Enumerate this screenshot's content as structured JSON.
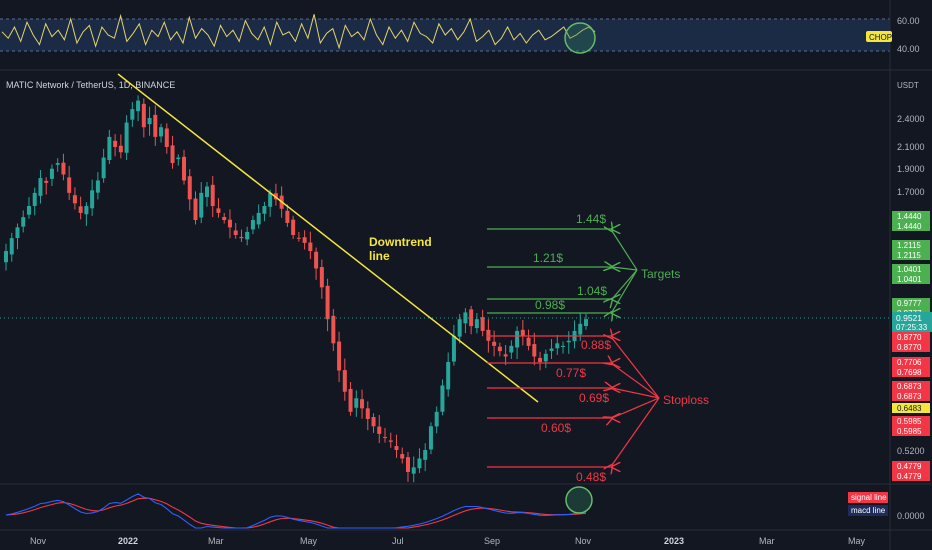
{
  "header": {
    "symbol_title": "MATIC Network / TetherUS, 1D, BINANCE",
    "currency": "USDT"
  },
  "colors": {
    "background": "#131722",
    "up": "#26a69a",
    "down": "#ef5350",
    "trendline": "#f5e63d",
    "target": "#4caf50",
    "stop": "#f23645",
    "chop_line": "#e6d36b",
    "signal_line": "#f23645",
    "macd_line": "#2962ff",
    "current_price": "#26a69a"
  },
  "chop_panel": {
    "ticks": [
      "60.00",
      "40.00"
    ],
    "badge": "CHOP",
    "values": [
      52,
      48,
      55,
      46,
      58,
      50,
      44,
      57,
      49,
      53,
      47,
      60,
      45,
      52,
      56,
      43,
      55,
      50,
      48,
      62,
      46,
      51,
      57,
      44,
      53,
      49,
      58,
      47,
      52,
      45,
      61,
      48,
      54,
      50,
      43,
      56,
      49,
      53,
      46,
      59,
      51,
      47,
      55,
      44,
      58,
      50,
      52,
      46,
      57,
      48,
      63,
      45,
      51,
      54,
      42,
      56,
      49,
      52,
      47,
      60,
      50,
      44,
      55,
      48,
      53,
      46,
      58,
      51,
      49,
      45,
      57,
      50,
      54,
      47,
      52,
      60,
      46,
      49,
      53,
      44,
      48,
      55,
      47,
      51,
      45,
      50,
      53,
      47,
      49,
      52,
      55,
      48,
      50,
      53,
      55,
      52
    ]
  },
  "price_panel": {
    "ticks": [
      "2.4000",
      "2.1000",
      "1.9000",
      "1.7000",
      "0.5200"
    ],
    "price_labels": [
      {
        "text": "1.4440",
        "kind": "target"
      },
      {
        "text": "1.4440",
        "kind": "target"
      },
      {
        "text": "1.2115",
        "kind": "target"
      },
      {
        "text": "1.2115",
        "kind": "target"
      },
      {
        "text": "1.0401",
        "kind": "target"
      },
      {
        "text": "1.0401",
        "kind": "target"
      },
      {
        "text": "0.9777",
        "kind": "target"
      },
      {
        "text": "0.9777",
        "kind": "target"
      },
      {
        "text": "0.8770",
        "kind": "stop"
      },
      {
        "text": "0.8770",
        "kind": "stop"
      },
      {
        "text": "0.7706",
        "kind": "stop"
      },
      {
        "text": "0.7698",
        "kind": "stop"
      },
      {
        "text": "0.6873",
        "kind": "stop"
      },
      {
        "text": "0.6873",
        "kind": "stop"
      },
      {
        "text": "0.6483",
        "kind": "yellow"
      },
      {
        "text": "0.5985",
        "kind": "stop"
      },
      {
        "text": "0.5985",
        "kind": "stop"
      },
      {
        "text": "0.4779",
        "kind": "stop"
      },
      {
        "text": "0.4779",
        "kind": "stop"
      }
    ],
    "current_price": {
      "price": "0.9521",
      "countdown": "07:25:33"
    }
  },
  "annotations": {
    "downtrend_label": [
      "Downtrend",
      "line"
    ],
    "targets_label": "Targets",
    "stoploss_label": "Stoploss",
    "target_levels": [
      "1.44$",
      "1.21$",
      "1.04$",
      "0.98$"
    ],
    "stop_levels": [
      "0.88$",
      "0.77$",
      "0.69$",
      "0.60$",
      "0.48$"
    ]
  },
  "macd_panel": {
    "tick": "0.0000",
    "legend": [
      {
        "text": "signal line",
        "kind": "signal"
      },
      {
        "text": "macd line",
        "kind": "macd"
      }
    ]
  },
  "x_axis": {
    "labels": [
      "Nov",
      "2022",
      "Mar",
      "May",
      "Jul",
      "Sep",
      "Nov",
      "2023",
      "Mar",
      "May"
    ]
  },
  "chart_data": {
    "type": "candlestick",
    "series": [
      {
        "close": [
          1.3,
          1.38,
          1.45,
          1.52,
          1.6,
          1.7,
          1.82,
          1.78,
          1.9,
          1.95,
          1.85,
          1.7,
          1.62,
          1.55,
          1.6,
          1.72,
          1.8,
          2.0,
          2.2,
          2.1,
          2.05,
          2.35,
          2.5,
          2.6,
          2.3,
          2.4,
          2.2,
          2.3,
          2.1,
          1.95,
          2.0,
          1.8,
          1.65,
          1.5,
          1.7,
          1.75,
          1.6,
          1.55,
          1.5,
          1.45,
          1.4,
          1.38,
          1.42,
          1.5,
          1.55,
          1.6,
          1.7,
          1.65,
          1.58,
          1.48,
          1.4,
          1.38,
          1.35,
          1.3,
          1.2,
          1.1,
          0.95,
          0.85,
          0.75,
          0.68,
          0.62,
          0.66,
          0.63,
          0.6,
          0.58,
          0.56,
          0.55,
          0.54,
          0.52,
          0.5,
          0.47,
          0.48,
          0.5,
          0.52,
          0.58,
          0.62,
          0.7,
          0.78,
          0.88,
          0.95,
          0.98,
          0.92,
          0.95,
          0.9,
          0.86,
          0.84,
          0.82,
          0.8,
          0.84,
          0.9,
          0.88,
          0.84,
          0.8,
          0.78,
          0.81,
          0.83,
          0.85,
          0.84,
          0.86,
          0.9,
          0.93,
          0.95
        ]
      }
    ],
    "trendline": {
      "from": [
        23,
        2.65
      ],
      "to": [
        108,
        0.67
      ]
    },
    "targets": [
      1.44,
      1.21,
      1.04,
      0.98
    ],
    "stops": [
      0.88,
      0.77,
      0.69,
      0.6,
      0.48
    ],
    "current": 0.9521,
    "grid": false
  }
}
